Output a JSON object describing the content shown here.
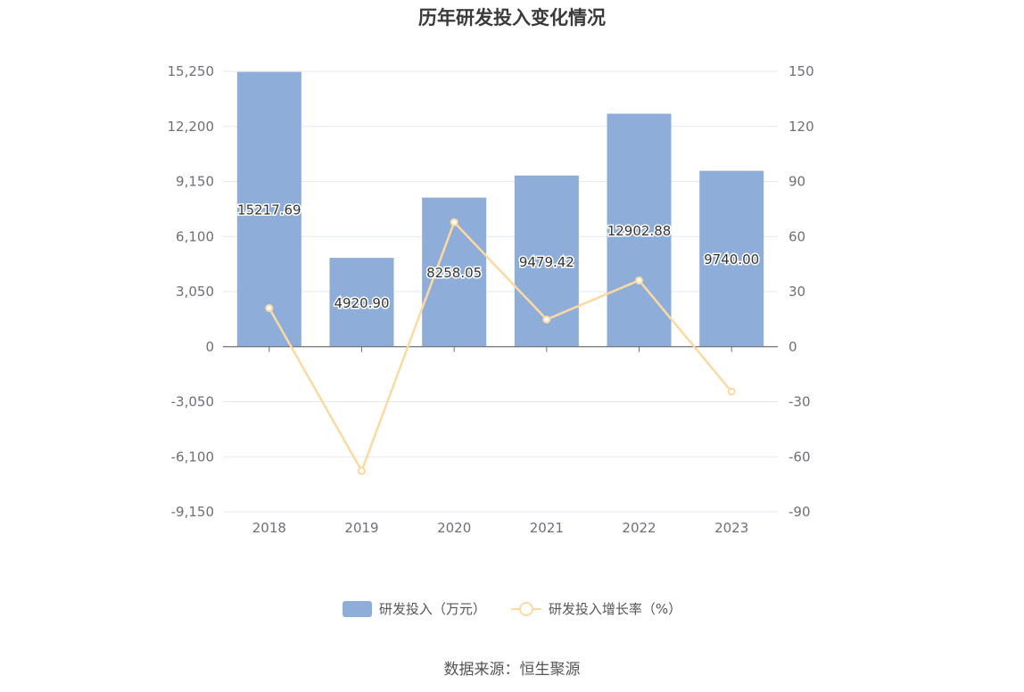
{
  "title": "历年研发投入变化情况",
  "source": "数据来源：恒生聚源",
  "legend": {
    "bar_label": "研发投入（万元）",
    "line_label": "研发投入增长率（%）"
  },
  "colors": {
    "bar": "#8eadd9",
    "line": "#fcd9a1",
    "grid": "#e3e8f2",
    "axis": "#6e7079"
  },
  "chart_data": {
    "type": "bar",
    "categories": [
      "2018",
      "2019",
      "2020",
      "2021",
      "2022",
      "2023"
    ],
    "series": [
      {
        "name": "研发投入（万元）",
        "type": "bar",
        "axis": "left",
        "values": [
          15217.69,
          4920.9,
          8258.05,
          9479.42,
          12902.88,
          9740.0
        ],
        "labels": [
          "15217.69",
          "4920.90",
          "8258.05",
          "9479.42",
          "12902.88",
          "9740.00"
        ]
      },
      {
        "name": "研发投入增长率（%）",
        "type": "line",
        "axis": "right",
        "values": [
          21.0,
          -67.7,
          67.8,
          14.8,
          36.1,
          -24.5
        ]
      }
    ],
    "y_left": {
      "min": -9150,
      "max": 15250,
      "ticks": [
        15250,
        12200,
        9150,
        6100,
        3050,
        0,
        -3050,
        -6100,
        -9150
      ],
      "tick_labels": [
        "15,250",
        "12,200",
        "9,150",
        "6,100",
        "3,050",
        "0",
        "-3,050",
        "-6,100",
        "-9,150"
      ]
    },
    "y_right": {
      "min": -90,
      "max": 150,
      "ticks": [
        150,
        120,
        90,
        60,
        30,
        0,
        -30,
        -60,
        -90
      ],
      "tick_labels": [
        "150",
        "120",
        "90",
        "60",
        "30",
        "0",
        "-30",
        "-60",
        "-90"
      ]
    },
    "grid": true,
    "legend_position": "bottom"
  }
}
